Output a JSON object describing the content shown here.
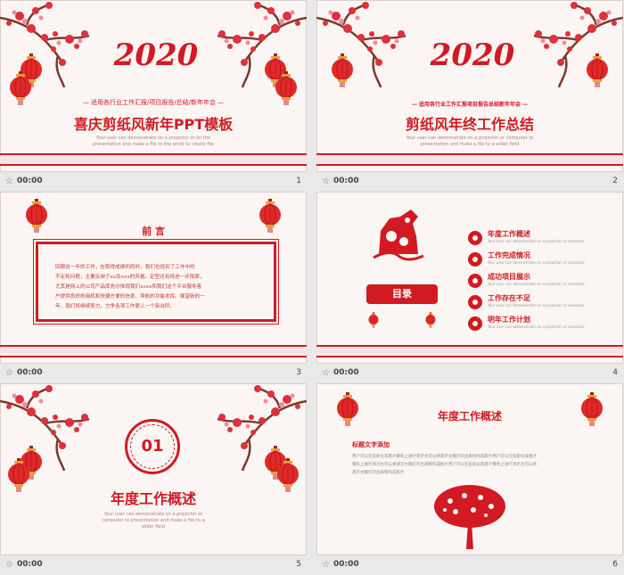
{
  "slides": [
    {
      "number": "1",
      "duration": "00:00",
      "year": "2020",
      "subtitle": "— 适用各行业工作汇报/项目报告/总结/新年年会 —",
      "title": "喜庆剪纸风新年PPT模板",
      "tiny": "Your user can demonstrate on a projector or on the presentation and make a file to the prodi to create file"
    },
    {
      "number": "2",
      "duration": "00:00",
      "year": "2020",
      "subtitle": "— 适用各行业工作汇报项目报告总结新年年会 —",
      "title": "剪纸风年终工作总结",
      "tiny": "Your user can demonstrate on a projector or computer to presentation and make a file to a wider field"
    },
    {
      "number": "3",
      "duration": "00:00",
      "heading": "前 言",
      "body_lines": [
        "回顾这一年的工作，在取得成绩的同时，我们也找到了工作中的",
        "不足和问题，主要反映于xx及xxx的风格。定型还有待进一步探索，",
        "尤其是网上的公司产品库充分体现我们xxxx和我们这个平台服务客",
        "户提供良好的商机和快捷方便的信息、导航的功能发挥。展望新的一",
        "年，我们将继续努力，力争各项工作更上一个新台阶。"
      ]
    },
    {
      "number": "4",
      "duration": "00:00",
      "menu_label": "目录",
      "items": [
        {
          "label": "年度工作概述",
          "sub": "Your user can demonstrate on a projector or computer"
        },
        {
          "label": "工作完成情况",
          "sub": "Your user can demonstrate on a projector or computer"
        },
        {
          "label": "成功项目展示",
          "sub": "Your user can demonstrate on a projector or computer"
        },
        {
          "label": "工作存在不足",
          "sub": "Your user can demonstrate on a projector or computer"
        },
        {
          "label": "明年工作计划",
          "sub": "Your user can demonstrate on a projector or computer"
        }
      ]
    },
    {
      "number": "5",
      "duration": "00:00",
      "chapter_no": "01",
      "title": "年度工作概述",
      "tiny": "Your user can demonstrate on a projector or computer to presentation and make a file to a wider field"
    },
    {
      "number": "6",
      "duration": "00:00",
      "title": "年度工作概述",
      "sub_heading": "标题文字添加",
      "body_lines": [
        "用户可以在投影仪或者计算机上进行演示也可以将演示文稿打印出来制作成胶片用户可以在投影仪或者计",
        "算机上进行演示也可以将演示文稿打印出来制作成胶片用户可以在投影仪或者计算机上进行演示也可以将",
        "演示文稿打印出来制作成胶片"
      ]
    }
  ],
  "colors": {
    "accent": "#d11a22",
    "slide_bg": "#fbf6f3",
    "page_bg": "#e9e9e9"
  }
}
